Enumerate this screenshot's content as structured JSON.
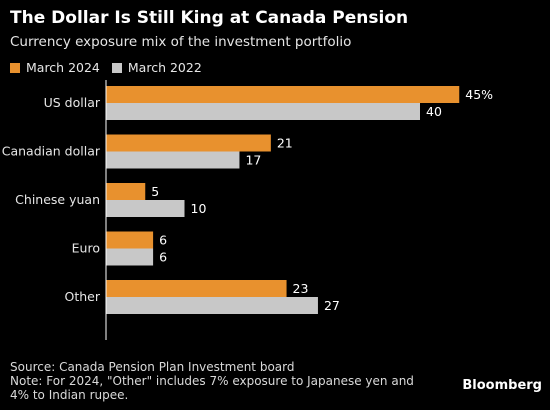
{
  "title": "The Dollar Is Still King at Canada Pension",
  "subtitle": "Currency exposure mix of the investment portfolio",
  "source": "Source: Canada Pension Plan Investment board",
  "note": "Note: For 2024, \"Other\" includes 7% exposure to Japanese yen and 4% to Indian rupee.",
  "brand": "Bloomberg",
  "colors": {
    "background": "#000000",
    "march_2024": "#e8912e",
    "march_2022": "#c8c8c8",
    "axis": "#ffffff"
  },
  "chart_data": {
    "type": "bar",
    "orientation": "horizontal",
    "categories": [
      "US dollar",
      "Canadian dollar",
      "Chinese yuan",
      "Euro",
      "Other"
    ],
    "series": [
      {
        "name": "March 2024",
        "values": [
          45,
          21,
          5,
          6,
          23
        ],
        "labels": [
          "45%",
          "21",
          "5",
          "6",
          "23"
        ],
        "color": "#e8912e"
      },
      {
        "name": "March 2022",
        "values": [
          40,
          17,
          10,
          6,
          27
        ],
        "labels": [
          "40",
          "17",
          "10",
          "6",
          "27"
        ],
        "color": "#c8c8c8"
      }
    ],
    "xlim": [
      0,
      50
    ],
    "grid": false,
    "legend_position": "top-left"
  }
}
